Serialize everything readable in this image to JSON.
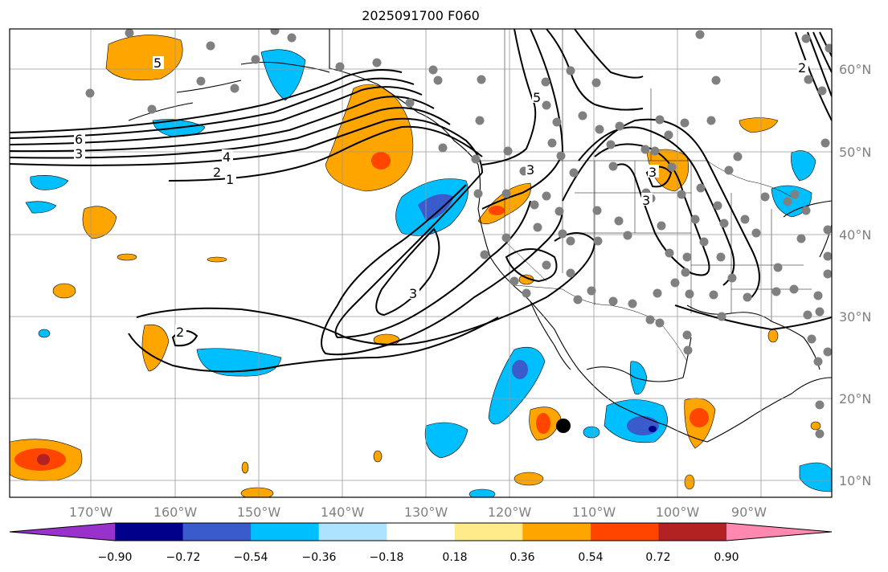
{
  "title": "2025091700 F060",
  "map": {
    "lon_labels": [
      "170°W",
      "160°W",
      "150°W",
      "140°W",
      "130°W",
      "120°W",
      "110°W",
      "100°W",
      "90°W"
    ],
    "lat_labels": [
      "60°N",
      "50°N",
      "40°N",
      "30°N",
      "20°N",
      "10°N"
    ],
    "gridlines": true,
    "shading_colors": {
      "neg_strong": "#00008b",
      "neg_mid": "#3a5bcc",
      "neg": "#00bfff",
      "pos": "#ffa500",
      "pos_mid": "#ff4500",
      "pos_strong": "#b22222"
    },
    "contour_labels": [
      "5",
      "6",
      "3",
      "4",
      "2",
      "1",
      "2",
      "5",
      "3",
      "3",
      "3",
      "3",
      "2"
    ],
    "station_marker_color": "#808080",
    "storm_marker_color": "#000000"
  },
  "colorbar": {
    "ticks": [
      "−0.90",
      "−0.72",
      "−0.54",
      "−0.36",
      "−0.18",
      "0.18",
      "0.36",
      "0.54",
      "0.72",
      "0.90"
    ],
    "colors": [
      "#9932cc",
      "#00008b",
      "#3a5bcc",
      "#00bfff",
      "#ade3ff",
      "#ffffff",
      "#ffeb8a",
      "#ffa500",
      "#ff4500",
      "#b22222",
      "#ff88b0"
    ],
    "extend": "both",
    "orientation": "horizontal"
  }
}
